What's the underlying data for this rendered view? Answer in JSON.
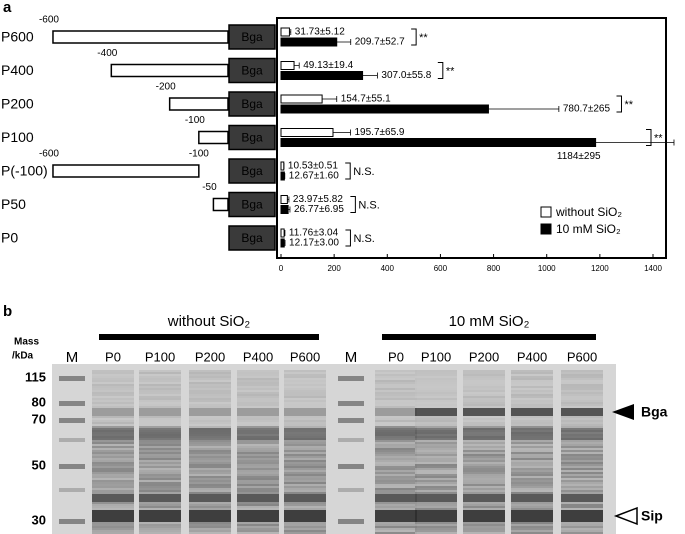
{
  "panel_labels": [
    "a",
    "b"
  ],
  "chart_data": {
    "type": "bar",
    "orientation": "horizontal",
    "categories": [
      "P600",
      "P400",
      "P200",
      "P100",
      "P(-100)",
      "P50",
      "P0"
    ],
    "series": [
      {
        "name": "without SiO₂",
        "color": "#ffffff",
        "values": [
          31.73,
          49.13,
          154.7,
          195.7,
          10.53,
          23.97,
          11.76
        ],
        "errors": [
          5.12,
          19.4,
          55.1,
          65.9,
          0.51,
          5.82,
          3.04
        ],
        "value_labels": [
          "31.73±5.12",
          "49.13±19.4",
          "154.7±55.1",
          "195.7±65.9",
          "10.53±0.51",
          "23.97±5.82",
          "11.76±3.04"
        ]
      },
      {
        "name": "10 mM SiO₂",
        "color": "#000000",
        "values": [
          209.7,
          307.0,
          780.7,
          1184,
          12.67,
          26.77,
          12.17
        ],
        "errors": [
          52.7,
          55.8,
          265,
          295,
          1.6,
          6.95,
          3.0
        ],
        "value_labels": [
          "209.7±52.7",
          "307.0±55.8",
          "780.7±265",
          "1184±295",
          "12.67±1.60",
          "26.77±6.95",
          "12.17±3.00"
        ]
      }
    ],
    "significance": [
      "**",
      "**",
      "**",
      "**",
      "N.S.",
      "N.S.",
      "N.S."
    ],
    "xlim": [
      0,
      1400
    ],
    "xticks": [
      0,
      200,
      400,
      600,
      800,
      1000,
      1200,
      1400
    ],
    "legend": "lower right"
  },
  "constructs": {
    "reporter": "Bga",
    "starts": [
      -600,
      -400,
      -200,
      -100,
      -600,
      -50,
      null
    ],
    "ends": [
      null,
      null,
      null,
      null,
      -100,
      null,
      null
    ]
  },
  "gel": {
    "mass_title": [
      "Mass",
      "/kDa"
    ],
    "marker_label": "M",
    "groups": [
      {
        "name": "without SiO₂",
        "lanes": [
          "P0",
          "P100",
          "P200",
          "P400",
          "P600"
        ]
      },
      {
        "name": "10 mM SiO₂",
        "lanes": [
          "P0",
          "P100",
          "P200",
          "P400",
          "P600"
        ]
      }
    ],
    "masses": [
      115,
      80,
      70,
      50,
      30
    ],
    "arrows": [
      "Bga",
      "Sip"
    ]
  }
}
